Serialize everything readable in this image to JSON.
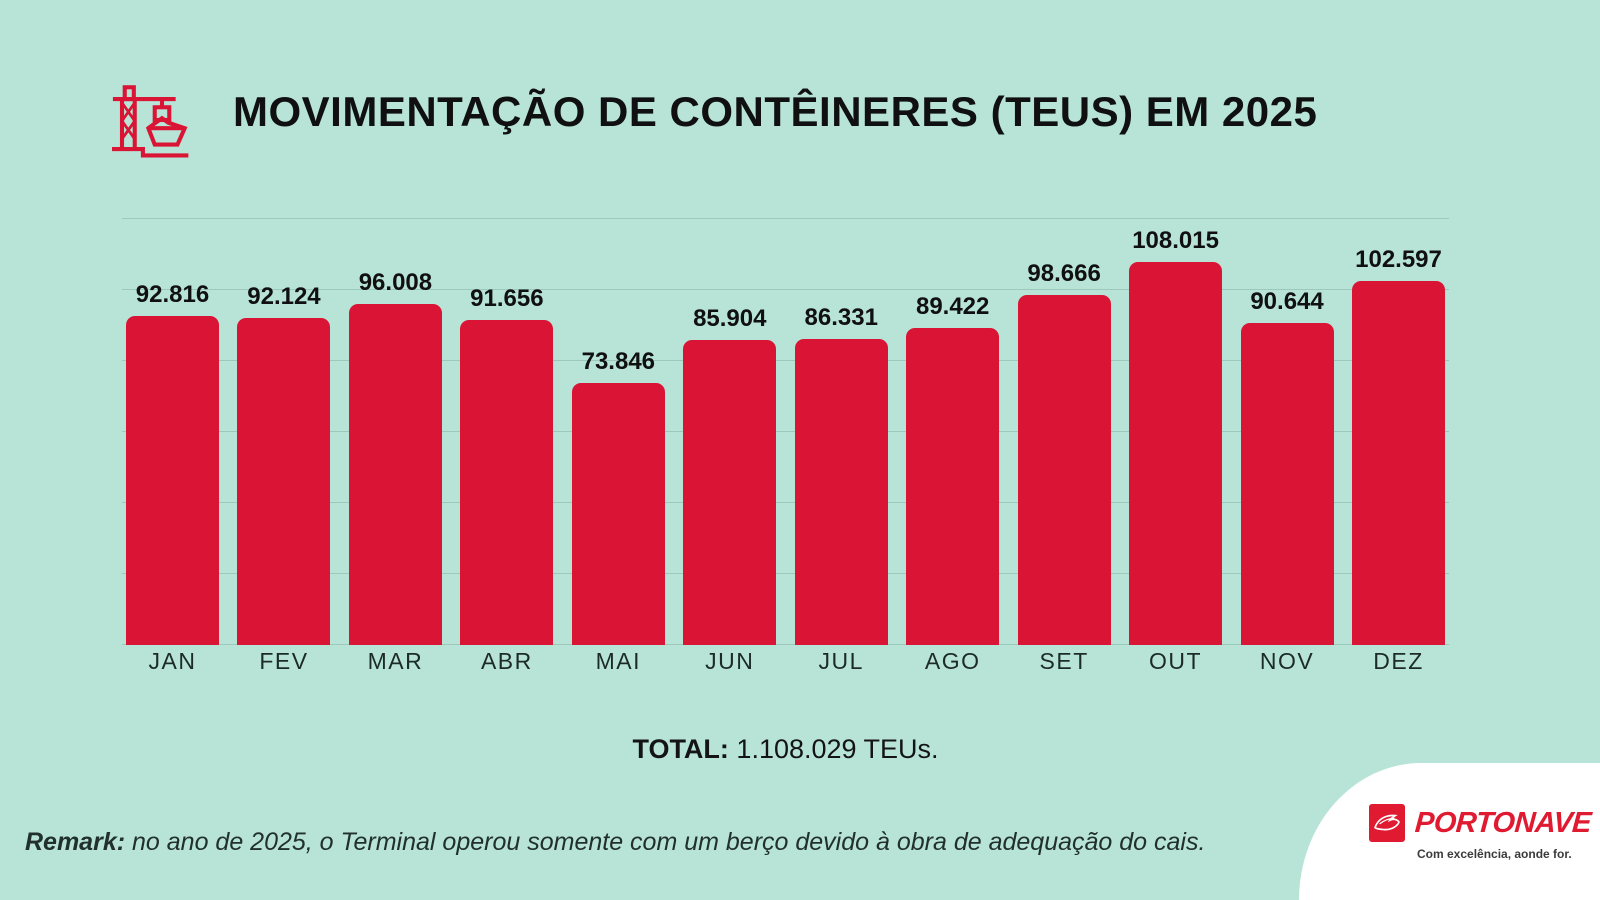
{
  "header": {
    "title": "MOVIMENTAÇÃO DE CONTÊINERES (TEUS) EM 2025",
    "icon": "port-crane-ship-icon"
  },
  "chart_data": {
    "type": "bar",
    "title": "MOVIMENTAÇÃO DE CONTÊINERES (TEUS) EM 2025",
    "categories": [
      "JAN",
      "FEV",
      "MAR",
      "ABR",
      "MAI",
      "JUN",
      "JUL",
      "AGO",
      "SET",
      "OUT",
      "NOV",
      "DEZ"
    ],
    "values": [
      92816,
      92124,
      96008,
      91656,
      73846,
      85904,
      86331,
      89422,
      98666,
      108015,
      90644,
      102597
    ],
    "value_labels": [
      "92.816",
      "92.124",
      "96.008",
      "91.656",
      "73.846",
      "85.904",
      "86.331",
      "89.422",
      "98.666",
      "108.015",
      "90.644",
      "102.597"
    ],
    "xlabel": "",
    "ylabel": "",
    "ylim": [
      0,
      120000
    ],
    "grid_step": 20000,
    "grid": "horizontal, unlabeled",
    "legend": "none",
    "unit": "TEUs"
  },
  "total": {
    "label": "TOTAL:",
    "value": " 1.108.029 TEUs."
  },
  "remark": {
    "label": "Remark:",
    "text": " no ano de 2025, o Terminal operou somente com um berço devido à obra de adequação do cais."
  },
  "brand": {
    "name": "PORTONAVE",
    "tagline": "Com excelência, aonde for."
  },
  "colors": {
    "background": "#b7e4d6",
    "bar": "#da1435",
    "text": "#141414",
    "brand_red": "#e01a31",
    "panel": "#ffffff",
    "grid": "rgba(90,128,118,0.28)"
  }
}
